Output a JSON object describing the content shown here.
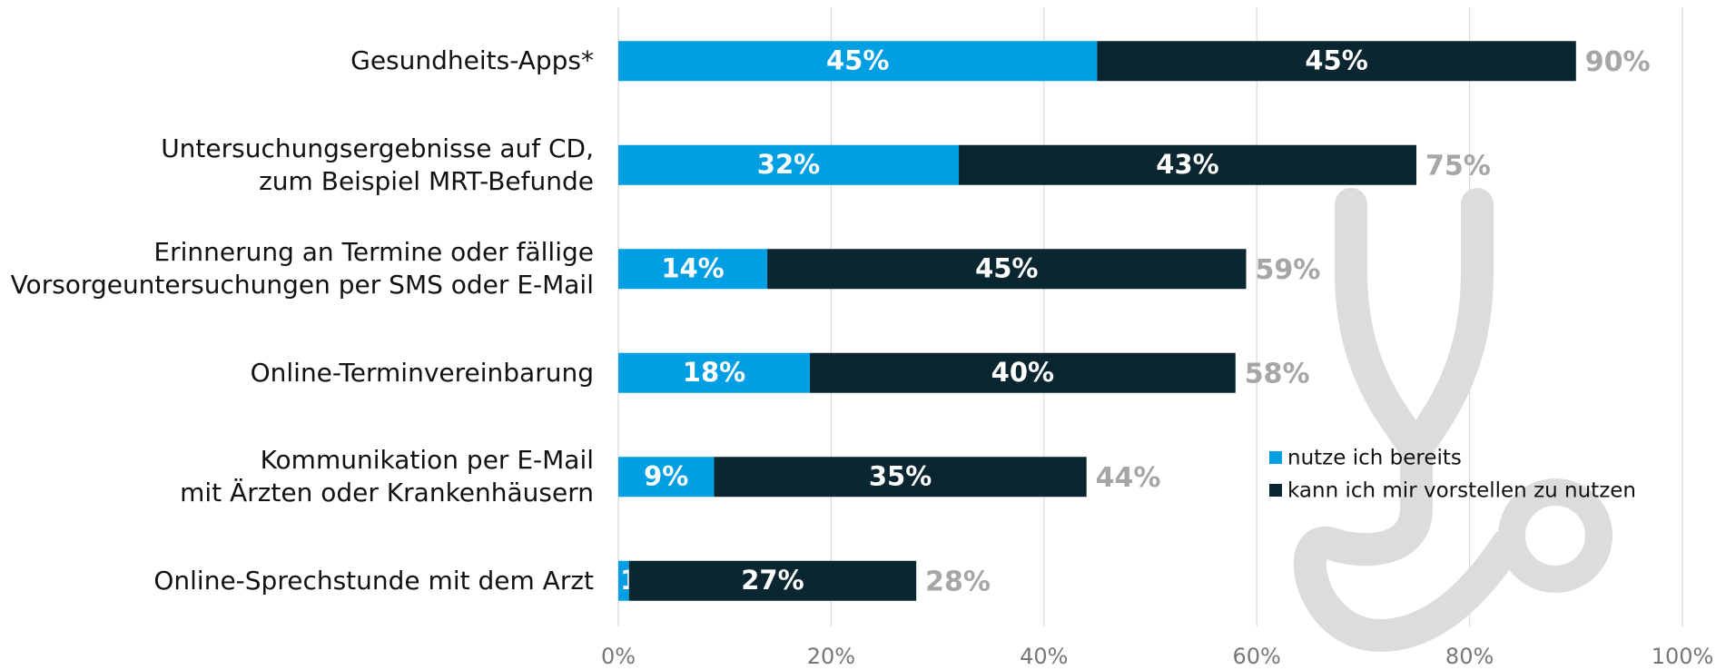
{
  "chart_data": {
    "type": "stacked_barh",
    "categories": [
      "Gesundheits-Apps*",
      "Untersuchungsergebnisse auf CD,\nzum Beispiel MRT-Befunde",
      "Erinnerung an Termine oder fällige\nVorsorgeuntersuchungen per SMS oder E-Mail",
      "Online-Terminvereinbarung",
      "Kommunikation per E-Mail\nmit Ärzten oder Krankenhäusern",
      "Online-Sprechstunde mit dem Arzt"
    ],
    "series": [
      {
        "name": "nutze ich bereits",
        "color": "#009fe3",
        "values": [
          45,
          32,
          14,
          18,
          9,
          1
        ],
        "value_labels": [
          "45%",
          "32%",
          "14%",
          "18%",
          "9%",
          "1%"
        ]
      },
      {
        "name": "kann ich mir vorstellen zu nutzen",
        "color": "#0a2630",
        "values": [
          45,
          43,
          45,
          40,
          35,
          27
        ],
        "value_labels": [
          "45%",
          "43%",
          "45%",
          "40%",
          "35%",
          "27%"
        ]
      }
    ],
    "totals": {
      "values": [
        90,
        75,
        59,
        58,
        44,
        28
      ],
      "value_labels": [
        "90%",
        "75%",
        "59%",
        "58%",
        "44%",
        "28%"
      ]
    },
    "xlim": [
      0,
      100
    ],
    "xticks": [
      {
        "value": 0,
        "label": "0%"
      },
      {
        "value": 20,
        "label": "20%"
      },
      {
        "value": 40,
        "label": "40%"
      },
      {
        "value": 60,
        "label": "60%"
      },
      {
        "value": 80,
        "label": "80%"
      },
      {
        "value": 100,
        "label": "100%"
      }
    ],
    "grid": true,
    "legend": "right"
  }
}
